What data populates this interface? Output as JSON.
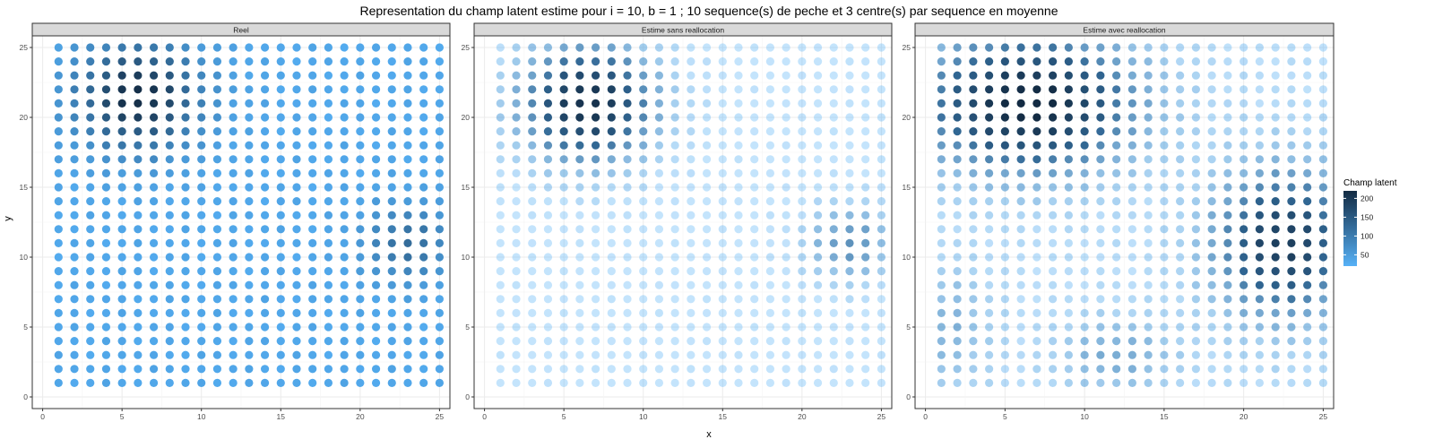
{
  "chart_data": {
    "type": "scatter",
    "title": "Representation du champ latent estime pour i = 10, b = 1 ; 10 sequence(s) de peche et 3 centre(s) par sequence en moyenne",
    "xlabel": "x",
    "ylabel": "y",
    "xlim": [
      0,
      25
    ],
    "ylim": [
      0,
      25
    ],
    "x_ticks": [
      0,
      5,
      10,
      15,
      20,
      25
    ],
    "y_ticks": [
      0,
      5,
      10,
      15,
      20,
      25
    ],
    "grid": true,
    "x_values": [
      1,
      2,
      3,
      4,
      5,
      6,
      7,
      8,
      9,
      10,
      11,
      12,
      13,
      14,
      15,
      16,
      17,
      18,
      19,
      20,
      21,
      22,
      23,
      24,
      25
    ],
    "y_values": [
      1,
      2,
      3,
      4,
      5,
      6,
      7,
      8,
      9,
      10,
      11,
      12,
      13,
      14,
      15,
      16,
      17,
      18,
      19,
      20,
      21,
      22,
      23,
      24,
      25
    ],
    "grid_note": "Each panel shows a regular 25x25 lattice; champ latent values estimated from colour intensity",
    "legend": {
      "title": "Champ latent",
      "ticks": [
        50,
        100,
        150,
        200
      ],
      "min": 20,
      "max": 220,
      "color_low": "#56b1f7",
      "color_high": "#132b43",
      "placement": "right"
    },
    "panels": [
      {
        "name": "Reel",
        "alpha_min": 1.0,
        "base": 35,
        "hotspots": [
          {
            "x": 6,
            "y": 21.5,
            "amp": 185,
            "sx": 2.6,
            "sy": 2.6
          },
          {
            "x": 23,
            "y": 11,
            "amp": 90,
            "sx": 1.8,
            "sy": 1.8
          }
        ]
      },
      {
        "name": "Estime sans reallocation",
        "alpha_min": 0.35,
        "base": 18,
        "hotspots": [
          {
            "x": 6.5,
            "y": 21,
            "amp": 195,
            "sx": 2.9,
            "sy": 2.9
          },
          {
            "x": 23,
            "y": 11,
            "amp": 85,
            "sx": 1.9,
            "sy": 1.9
          }
        ]
      },
      {
        "name": "Estime avec reallocation",
        "alpha_min": 0.35,
        "base": 28,
        "hotspots": [
          {
            "x": 6.5,
            "y": 21,
            "amp": 200,
            "sx": 4.5,
            "sy": 3.3
          },
          {
            "x": 22.5,
            "y": 11,
            "amp": 165,
            "sx": 3.0,
            "sy": 3.6
          },
          {
            "x": 12,
            "y": 3,
            "amp": 55,
            "sx": 2.5,
            "sy": 1.8
          },
          {
            "x": 1.5,
            "y": 5,
            "amp": 45,
            "sx": 1.8,
            "sy": 3
          }
        ]
      }
    ]
  }
}
